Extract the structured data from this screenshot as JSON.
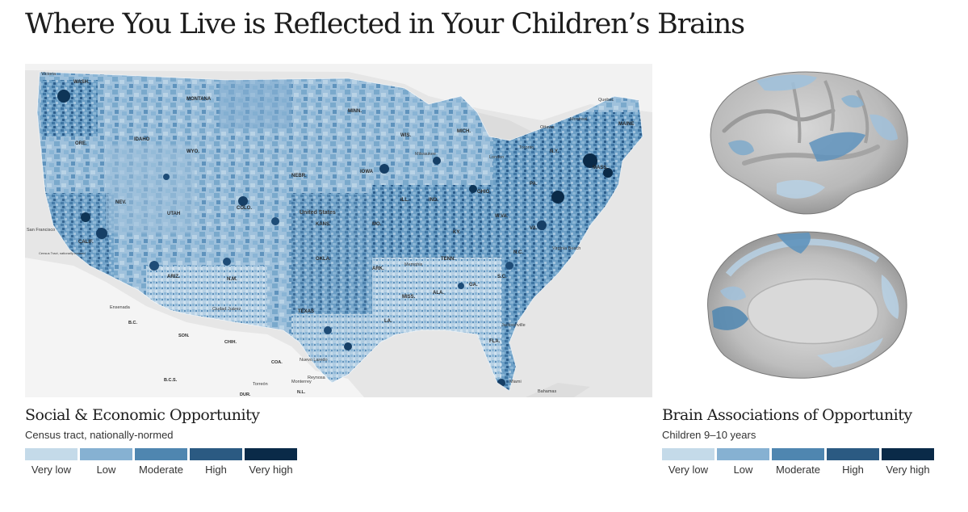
{
  "title": "Where You Live is Reflected in Your Children’s Brains",
  "map": {
    "labels": {
      "states": [
        "WASH.",
        "MONTANA",
        "IDAHO",
        "WYO.",
        "ORE.",
        "NEV.",
        "UTAH",
        "COLO.",
        "CALIF.",
        "ARIZ.",
        "N.M.",
        "TEXAS",
        "OKLA.",
        "KANS.",
        "NEBR.",
        "IOWA",
        "MO.",
        "ARK.",
        "LA.",
        "MISS.",
        "ALA.",
        "GA.",
        "FLA.",
        "TENN.",
        "KY.",
        "ILL.",
        "IND.",
        "OHIO",
        "MICH.",
        "WIS.",
        "MINN.",
        "W.VA.",
        "VA.",
        "N.C.",
        "S.C.",
        "PA.",
        "N.Y.",
        "MAINE",
        "MASS."
      ],
      "places": [
        "United States",
        "San Francisco",
        "Quebec",
        "Montreal",
        "Ottawa",
        "Toronto",
        "London",
        "Ensenada",
        "Ciudad Juárez",
        "Monterrey",
        "Nuevo Laredo",
        "Reynosa",
        "Torreón",
        "Miami",
        "Bahamas",
        "Virginia Beach",
        "Jacksonville",
        "Memphis",
        "Milwaukee",
        "Victoria",
        "Census Tract, nationally-normed"
      ],
      "mexico": [
        "B.C.",
        "SON.",
        "CHIH.",
        "COA.",
        "B.C.S.",
        "DUR.",
        "N.L."
      ]
    }
  },
  "brains": {
    "lateral_icon": "brain-lateral-view",
    "medial_icon": "brain-medial-view"
  },
  "legend_left": {
    "title": "Social & Economic Opportunity",
    "subtitle": "Census tract, nationally-normed",
    "items": [
      {
        "label": "Very low",
        "color": "#c4dae9"
      },
      {
        "label": "Low",
        "color": "#86b1d2"
      },
      {
        "label": "Moderate",
        "color": "#4f86b0"
      },
      {
        "label": "High",
        "color": "#2b5a82"
      },
      {
        "label": "Very high",
        "color": "#0a2a48"
      }
    ]
  },
  "legend_right": {
    "title": "Brain Associations of Opportunity",
    "subtitle": "Children 9–10 years",
    "items": [
      {
        "label": "Very low",
        "color": "#c4dae9"
      },
      {
        "label": "Low",
        "color": "#86b1d2"
      },
      {
        "label": "Moderate",
        "color": "#4f86b0"
      },
      {
        "label": "High",
        "color": "#2b5a82"
      },
      {
        "label": "Very high",
        "color": "#0a2a48"
      }
    ]
  }
}
